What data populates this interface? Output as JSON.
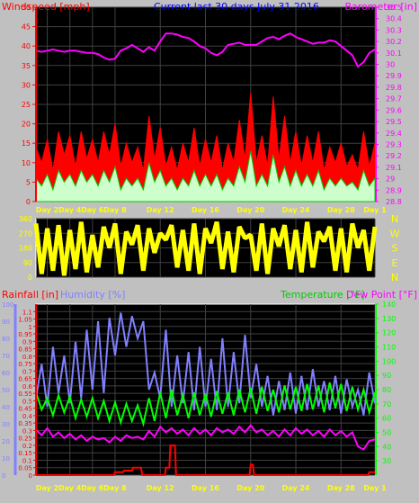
{
  "title": "Current last 30 days July 31 2016",
  "colors": {
    "background": "#c0c0c0",
    "plot_bg": "#000000",
    "frame": "#ffffff",
    "wind_speed": "#ff0000",
    "wind_avg": "#00cc00",
    "wind_fill": "#ccffcc",
    "wind_calm": "#a0a0a0",
    "barometer": "#ff00ff",
    "direction": "#ffff00",
    "rainfall": "#ff0000",
    "humidity": "#8080ff",
    "temperature": "#00ff00",
    "dew_point": "#ff00ff",
    "rain_axis": "#ff0000",
    "humidity_axis": "#8080ff",
    "day_labels": "#ffff00"
  },
  "x_axis": {
    "day_labels": [
      "Day 2",
      "Day 4",
      "Day 6",
      "Day 8",
      "Day 12",
      "Day 16",
      "Day 20",
      "Day 24",
      "Day 28",
      "Day 1"
    ],
    "day_positions": [
      2,
      4,
      6,
      8,
      12,
      16,
      20,
      24,
      28,
      31
    ],
    "range": [
      1,
      31
    ]
  },
  "chart_data": [
    {
      "type": "line",
      "name": "wind-barometer",
      "title": "Current last 30 days July 31 2016",
      "ylabel_left": "Windspeed [mph]",
      "ylabel_right": "Barometer [in]",
      "y_left": {
        "range": [
          0,
          50
        ],
        "ticks": [
          "0",
          "5",
          "10",
          "15",
          "20",
          "25",
          "30",
          "35",
          "40",
          "45",
          "50"
        ]
      },
      "y_right": {
        "range": [
          28.8,
          30.5
        ],
        "ticks": [
          "28.8",
          "28.9",
          "29",
          "29.1",
          "29.2",
          "29.3",
          "29.4",
          "29.5",
          "29.6",
          "29.7",
          "29.8",
          "29.9",
          "30",
          "30.1",
          "30.2",
          "30.3",
          "30.4",
          "30.5"
        ]
      },
      "series": [
        {
          "name": "Barometer",
          "x": [
            1,
            1.5,
            2,
            2.5,
            3,
            3.5,
            4,
            4.5,
            5,
            5.5,
            6,
            6.5,
            7,
            7.5,
            8,
            8.5,
            9,
            9.5,
            10,
            10.5,
            11,
            11.5,
            12,
            12.5,
            13,
            13.5,
            14,
            14.5,
            15,
            15.5,
            16,
            16.5,
            17,
            17.5,
            18,
            18.5,
            19,
            19.5,
            20,
            20.5,
            21,
            21.5,
            22,
            22.5,
            23,
            23.5,
            24,
            24.5,
            25,
            25.5,
            26,
            26.5,
            27,
            27.5,
            28,
            28.5,
            29,
            29.5,
            30,
            30.5,
            31
          ],
          "values": [
            30.12,
            30.11,
            30.12,
            30.13,
            30.12,
            30.11,
            30.12,
            30.12,
            30.11,
            30.1,
            30.1,
            30.09,
            30.06,
            30.04,
            30.05,
            30.12,
            30.14,
            30.17,
            30.14,
            30.11,
            30.15,
            30.12,
            30.2,
            30.27,
            30.27,
            30.26,
            30.24,
            30.23,
            30.2,
            30.16,
            30.14,
            30.1,
            30.08,
            30.11,
            30.17,
            30.18,
            30.19,
            30.17,
            30.17,
            30.17,
            30.2,
            30.23,
            30.24,
            30.22,
            30.25,
            30.27,
            30.24,
            30.22,
            30.2,
            30.18,
            30.19,
            30.19,
            30.21,
            30.2,
            30.16,
            30.12,
            30.08,
            29.98,
            30.02,
            30.1,
            30.13
          ]
        },
        {
          "name": "Wind gust",
          "x": [
            1,
            1.5,
            2,
            2.5,
            3,
            3.5,
            4,
            4.5,
            5,
            5.5,
            6,
            6.5,
            7,
            7.5,
            8,
            8.5,
            9,
            9.5,
            10,
            10.5,
            11,
            11.5,
            12,
            12.5,
            13,
            13.5,
            14,
            14.5,
            15,
            15.5,
            16,
            16.5,
            17,
            17.5,
            18,
            18.5,
            19,
            19.5,
            20,
            20.5,
            21,
            21.5,
            22,
            22.5,
            23,
            23.5,
            24,
            24.5,
            25,
            25.5,
            26,
            26.5,
            27,
            27.5,
            28,
            28.5,
            29,
            29.5,
            30,
            30.5,
            31
          ],
          "values": [
            14,
            10,
            16,
            8,
            18,
            12,
            17,
            9,
            18,
            11,
            16,
            10,
            18,
            12,
            20,
            9,
            15,
            10,
            14,
            8,
            22,
            11,
            19,
            9,
            14,
            8,
            15,
            10,
            19,
            9,
            16,
            10,
            17,
            8,
            15,
            10,
            21,
            11,
            28,
            10,
            17,
            9,
            27,
            11,
            22,
            10,
            18,
            9,
            17,
            10,
            18,
            8,
            14,
            10,
            15,
            9,
            12,
            8,
            18,
            9,
            15
          ]
        },
        {
          "name": "Wind average",
          "x": [
            1,
            1.5,
            2,
            2.5,
            3,
            3.5,
            4,
            4.5,
            5,
            5.5,
            6,
            6.5,
            7,
            7.5,
            8,
            8.5,
            9,
            9.5,
            10,
            10.5,
            11,
            11.5,
            12,
            12.5,
            13,
            13.5,
            14,
            14.5,
            15,
            15.5,
            16,
            16.5,
            17,
            17.5,
            18,
            18.5,
            19,
            19.5,
            20,
            20.5,
            21,
            21.5,
            22,
            22.5,
            23,
            23.5,
            24,
            24.5,
            25,
            25.5,
            26,
            26.5,
            27,
            27.5,
            28,
            28.5,
            29,
            29.5,
            30,
            30.5,
            31
          ],
          "values": [
            6,
            4,
            7,
            3,
            8,
            5,
            7,
            4,
            8,
            5,
            7,
            4,
            8,
            5,
            9,
            3,
            6,
            4,
            6,
            3,
            10,
            5,
            8,
            4,
            6,
            3,
            6,
            4,
            8,
            4,
            7,
            4,
            7,
            3,
            6,
            4,
            9,
            5,
            13,
            4,
            7,
            4,
            12,
            5,
            9,
            4,
            8,
            4,
            7,
            4,
            8,
            3,
            6,
            4,
            6,
            4,
            5,
            3,
            8,
            4,
            6
          ]
        }
      ]
    },
    {
      "type": "scatter",
      "name": "wind-direction",
      "y_left": {
        "range": [
          0,
          360
        ],
        "ticks": [
          "0",
          "90",
          "180",
          "270",
          "360"
        ]
      },
      "y_right_labels": [
        "N",
        "W",
        "S",
        "E",
        "N"
      ],
      "series": [
        {
          "name": "Wind direction",
          "x": [
            1,
            1.5,
            2,
            2.5,
            3,
            3.5,
            4,
            4.5,
            5,
            5.5,
            6,
            6.5,
            7,
            7.5,
            8,
            8.5,
            9,
            9.5,
            10,
            10.5,
            11,
            11.5,
            12,
            12.5,
            13,
            13.5,
            14,
            14.5,
            15,
            15.5,
            16,
            16.5,
            17,
            17.5,
            18,
            18.5,
            19,
            19.5,
            20,
            20.5,
            21,
            21.5,
            22,
            22.5,
            23,
            23.5,
            24,
            24.5,
            25,
            25.5,
            26,
            26.5,
            27,
            27.5,
            28,
            28.5,
            29,
            29.5,
            30,
            30.5,
            31
          ],
          "values": [
            330,
            20,
            300,
            40,
            320,
            10,
            290,
            50,
            340,
            30,
            260,
            60,
            310,
            180,
            330,
            20,
            280,
            200,
            320,
            40,
            300,
            150,
            270,
            230,
            320,
            60,
            290,
            40,
            330,
            20,
            300,
            210,
            340,
            50,
            280,
            30,
            310,
            240,
            260,
            40,
            330,
            20,
            300,
            190,
            320,
            50,
            290,
            30,
            340,
            60,
            280,
            220,
            310,
            40,
            300,
            30,
            330,
            180,
            290,
            40,
            310
          ]
        }
      ]
    },
    {
      "type": "line",
      "name": "rain-humidity-temperature",
      "ylabel_left_1": "Rainfall [in]",
      "ylabel_left_2": "Humidity [%]",
      "ylabel_right_1": "Temperature [°F]",
      "ylabel_right_2": "Dew Point [°F]",
      "y_rain": {
        "range": [
          0,
          1.15
        ],
        "ticks": [
          "0",
          "0.05",
          "0.1",
          "0.15",
          "0.2",
          "0.25",
          "0.3",
          "0.35",
          "0.4",
          "0.45",
          "0.5",
          "0.55",
          "0.6",
          "0.65",
          "0.7",
          "0.75",
          "0.8",
          "0.85",
          "0.9",
          "0.95",
          "1",
          "1.05",
          "1.1"
        ]
      },
      "y_humidity": {
        "range": [
          0,
          100
        ],
        "ticks": [
          "0",
          "10",
          "20",
          "30",
          "40",
          "50",
          "60",
          "70",
          "80",
          "90",
          "100"
        ]
      },
      "y_temp": {
        "range": [
          20,
          140
        ],
        "ticks": [
          "30",
          "40",
          "50",
          "60",
          "70",
          "80",
          "90",
          "100",
          "110",
          "120",
          "130",
          "140"
        ]
      },
      "series": [
        {
          "name": "Humidity",
          "x": [
            1,
            1.5,
            2,
            2.5,
            3,
            3.5,
            4,
            4.5,
            5,
            5.5,
            6,
            6.5,
            7,
            7.5,
            8,
            8.5,
            9,
            9.5,
            10,
            10.5,
            11,
            11.5,
            12,
            12.5,
            13,
            13.5,
            14,
            14.5,
            15,
            15.5,
            16,
            16.5,
            17,
            17.5,
            18,
            18.5,
            19,
            19.5,
            20,
            20.5,
            21,
            21.5,
            22,
            22.5,
            23,
            23.5,
            24,
            24.5,
            25,
            25.5,
            26,
            26.5,
            27,
            27.5,
            28,
            28.5,
            29,
            29.5,
            30,
            30.5,
            31
          ],
          "values": [
            45,
            65,
            40,
            75,
            48,
            70,
            42,
            78,
            45,
            85,
            50,
            90,
            48,
            92,
            70,
            95,
            75,
            93,
            80,
            90,
            50,
            60,
            45,
            85,
            40,
            70,
            42,
            72,
            38,
            75,
            40,
            68,
            38,
            80,
            40,
            72,
            42,
            82,
            45,
            65,
            40,
            58,
            35,
            55,
            38,
            60,
            36,
            58,
            38,
            62,
            40,
            55,
            38,
            58,
            36,
            56,
            40,
            50,
            35,
            60,
            42
          ]
        },
        {
          "name": "Temperature",
          "x": [
            1,
            1.5,
            2,
            2.5,
            3,
            3.5,
            4,
            4.5,
            5,
            5.5,
            6,
            6.5,
            7,
            7.5,
            8,
            8.5,
            9,
            9.5,
            10,
            10.5,
            11,
            11.5,
            12,
            12.5,
            13,
            13.5,
            14,
            14.5,
            15,
            15.5,
            16,
            16.5,
            17,
            17.5,
            18,
            18.5,
            19,
            19.5,
            20,
            20.5,
            21,
            21.5,
            22,
            22.5,
            23,
            23.5,
            24,
            24.5,
            25,
            25.5,
            26,
            26.5,
            27,
            27.5,
            28,
            28.5,
            29,
            29.5,
            30,
            30.5,
            31
          ],
          "values": [
            78,
            66,
            74,
            62,
            76,
            64,
            75,
            60,
            73,
            61,
            74,
            60,
            72,
            58,
            71,
            57,
            70,
            58,
            69,
            56,
            74,
            58,
            78,
            60,
            80,
            62,
            76,
            60,
            78,
            62,
            77,
            61,
            79,
            63,
            78,
            62,
            80,
            64,
            81,
            63,
            82,
            65,
            80,
            64,
            83,
            66,
            82,
            65,
            84,
            66,
            83,
            64,
            85,
            67,
            84,
            65,
            82,
            66,
            80,
            64,
            78
          ]
        },
        {
          "name": "Dew Point",
          "x": [
            1,
            1.5,
            2,
            2.5,
            3,
            3.5,
            4,
            4.5,
            5,
            5.5,
            6,
            6.5,
            7,
            7.5,
            8,
            8.5,
            9,
            9.5,
            10,
            10.5,
            11,
            11.5,
            12,
            12.5,
            13,
            13.5,
            14,
            14.5,
            15,
            15.5,
            16,
            16.5,
            17,
            17.5,
            18,
            18.5,
            19,
            19.5,
            20,
            20.5,
            21,
            21.5,
            22,
            22.5,
            23,
            23.5,
            24,
            24.5,
            25,
            25.5,
            26,
            26.5,
            27,
            27.5,
            28,
            28.5,
            29,
            29.5,
            30,
            30.5,
            31
          ],
          "values": [
            52,
            48,
            53,
            47,
            50,
            46,
            49,
            45,
            48,
            44,
            47,
            45,
            46,
            43,
            47,
            44,
            48,
            46,
            47,
            45,
            51,
            47,
            54,
            50,
            53,
            49,
            52,
            48,
            53,
            49,
            52,
            48,
            53,
            50,
            52,
            49,
            54,
            50,
            55,
            50,
            52,
            48,
            51,
            47,
            52,
            48,
            53,
            49,
            52,
            48,
            51,
            47,
            52,
            48,
            51,
            47,
            50,
            40,
            38,
            44,
            45
          ]
        },
        {
          "name": "Rainfall",
          "x": [
            1,
            7.9,
            8.0,
            8.7,
            8.8,
            9.5,
            9.6,
            10.3,
            10.4,
            12.4,
            12.5,
            12.8,
            12.9,
            13.3,
            13.4,
            19.9,
            20.0,
            20.2,
            20.3,
            30.4,
            30.5,
            31
          ],
          "values": [
            0,
            0,
            0.02,
            0.02,
            0.03,
            0.03,
            0.05,
            0.05,
            0.0,
            0.0,
            0.05,
            0.05,
            0.2,
            0.2,
            0.0,
            0.0,
            0.07,
            0.07,
            0.0,
            0.0,
            0.02,
            0.02
          ]
        }
      ]
    }
  ]
}
